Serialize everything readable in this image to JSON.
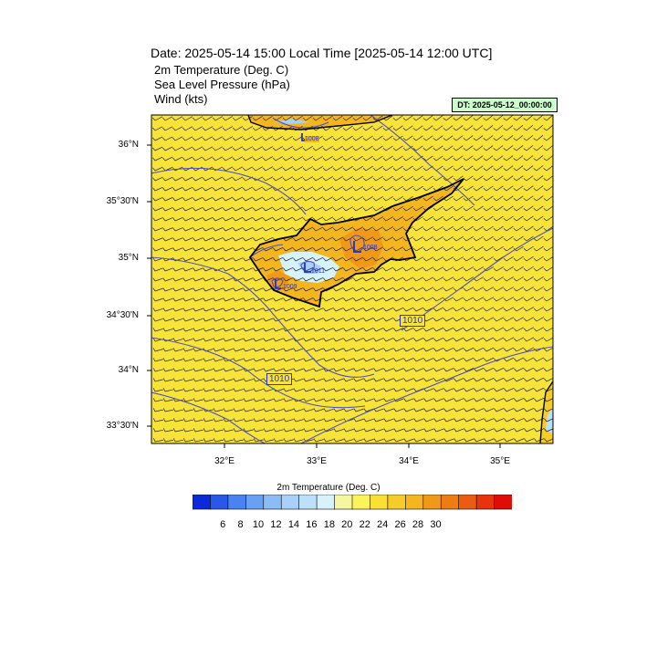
{
  "header": {
    "title": "Date: 2025-05-14  15:00 Local Time [2025-05-14  12:00 UTC]",
    "fields": [
      "2m Temperature (Deg. C)",
      "Sea Level Pressure   (hPa)",
      "Wind   (kts)"
    ],
    "init_label": "DT: 2025-05-12_00:00:00"
  },
  "map": {
    "region": "Cyprus / Eastern Mediterranean",
    "lat_labels": [
      "36°N",
      "35°30'N",
      "35°N",
      "34°30'N",
      "34°N",
      "33°30'N"
    ],
    "lon_labels": [
      "32°E",
      "33°E",
      "34°E",
      "35°E"
    ],
    "pressure_labels": [
      "1008",
      "1008",
      "1011",
      "1009",
      "1010",
      "1010"
    ],
    "colors": {
      "background_temp": "#f8e438",
      "warm_land": "#f0a020",
      "cool_pool": "#c8f0f8",
      "contour": "#4a50c8"
    }
  },
  "colorbar": {
    "title": "2m Temperature (Deg. C)",
    "labels": [
      "6",
      "8",
      "10",
      "12",
      "14",
      "16",
      "18",
      "20",
      "22",
      "24",
      "26",
      "28",
      "30"
    ],
    "colors": [
      "#0a2ad8",
      "#2858e8",
      "#4a82f0",
      "#6aa0f4",
      "#8cbcf6",
      "#a8d0f8",
      "#bce0fa",
      "#d6f2fa",
      "#f6f6a0",
      "#fbf35a",
      "#f9e032",
      "#f6cd28",
      "#f4b61e",
      "#f09818",
      "#ee7c12",
      "#ec5c10",
      "#e8340c",
      "#e00c08"
    ]
  }
}
